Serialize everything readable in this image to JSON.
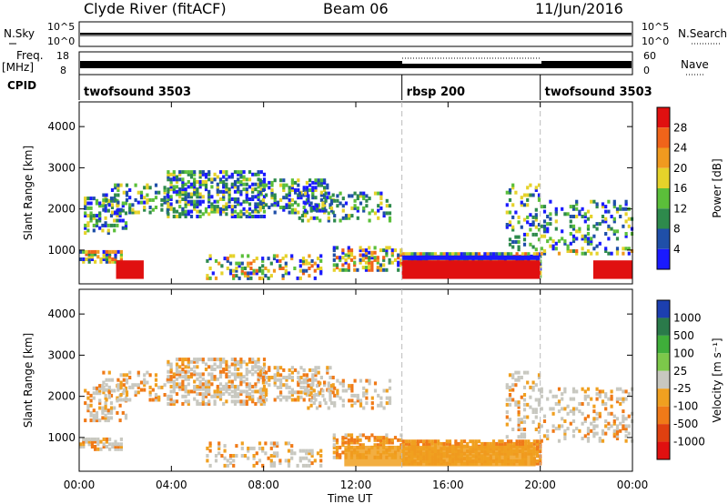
{
  "header": {
    "station": "Clyde River (fitACF)",
    "beam": "Beam 06",
    "date": "11/Jun/2016"
  },
  "strips": {
    "nsky_label": "N.Sky",
    "nsearch_label": "N.Search",
    "freq_label_line1": "Freq.",
    "freq_label_line2": "[MHz]",
    "nave_label": "Nave",
    "cpid_label": "CPID",
    "nsky_ticks": [
      "10^5",
      "10^0"
    ],
    "nsearch_ticks": [
      "10^5",
      "10^0"
    ],
    "freq_ticks": [
      "18",
      "8"
    ],
    "nave_ticks": [
      "60",
      "0"
    ],
    "cpid_segments": [
      {
        "name": "twofsound 3503",
        "start_h": 0,
        "end_h": 14
      },
      {
        "name": "rbsp 200",
        "start_h": 14,
        "end_h": 20
      },
      {
        "name": "twofsound 3503",
        "start_h": 20,
        "end_h": 24
      }
    ]
  },
  "chart_data": [
    {
      "type": "heatmap",
      "title": "Power",
      "ylabel": "Slant Range [km]",
      "xlabel": "",
      "xlim_hours": [
        0,
        24
      ],
      "ylim": [
        180,
        4600
      ],
      "yticks": [
        1000,
        2000,
        3000,
        4000
      ],
      "ytick_labels": [
        "1000",
        "2000",
        "3000",
        "4000"
      ],
      "colorbar": {
        "label": "Power [dB]",
        "tick_labels": [
          "4",
          "8",
          "12",
          "16",
          "20",
          "24",
          "28"
        ],
        "colors": [
          "#1a1aff",
          "#1f4fa8",
          "#2e8a4c",
          "#5bbf3a",
          "#e5d22a",
          "#f09a1f",
          "#f0641a",
          "#e01010"
        ]
      }
    },
    {
      "type": "heatmap",
      "title": "Velocity",
      "ylabel": "Slant Range [km]",
      "xlabel": "Time UT",
      "xlim_hours": [
        0,
        24
      ],
      "ylim": [
        180,
        4600
      ],
      "yticks": [
        1000,
        2000,
        3000,
        4000
      ],
      "ytick_labels": [
        "1000",
        "2000",
        "3000",
        "4000"
      ],
      "xtick_labels": [
        "00:00",
        "04:00",
        "08:00",
        "12:00",
        "16:00",
        "20:00",
        "00:00"
      ],
      "colorbar": {
        "label": "Velocity [m s⁻¹]",
        "tick_labels": [
          "1000",
          "500",
          "100",
          "25",
          "-25",
          "-100",
          "-500",
          "-1000"
        ],
        "colors": [
          "#1c3fb0",
          "#2a7a4a",
          "#3fae3a",
          "#7cc84a",
          "#c8c8c0",
          "#f0a020",
          "#f07a18",
          "#e04010",
          "#e01010"
        ]
      }
    }
  ]
}
